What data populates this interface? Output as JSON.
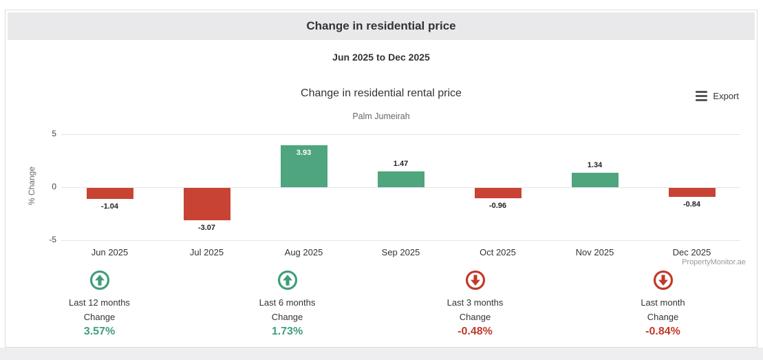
{
  "page": {
    "header_title": "Change in residential price",
    "date_range": "Jun 2025 to Dec 2025",
    "header_bg": "#e9e9eb"
  },
  "toolbar": {
    "export_label": "Export"
  },
  "chart_data": {
    "type": "bar",
    "title": "Change in residential rental price",
    "subtitle": "Palm Jumeirah",
    "categories": [
      "Jun 2025",
      "Jul 2025",
      "Aug 2025",
      "Sep 2025",
      "Oct 2025",
      "Nov 2025",
      "Dec 2025"
    ],
    "values": [
      -1.04,
      -3.07,
      3.93,
      1.47,
      -0.96,
      1.34,
      -0.84
    ],
    "ylabel": "% Change",
    "yticks": [
      5,
      0,
      -5
    ],
    "ylim": [
      -5,
      5
    ],
    "grid": true,
    "legend": false,
    "colors": {
      "positive": "#4ea57e",
      "negative": "#c94335"
    }
  },
  "watermark": "PropertyMonitor.ae",
  "stats": {
    "colors": {
      "up": "#3f9e7a",
      "down": "#c0392b"
    },
    "items": [
      {
        "period": "Last 12 months",
        "label": "Change",
        "value": "3.57%",
        "direction": "up"
      },
      {
        "period": "Last 6 months",
        "label": "Change",
        "value": "1.73%",
        "direction": "up"
      },
      {
        "period": "Last 3 months",
        "label": "Change",
        "value": "-0.48%",
        "direction": "down"
      },
      {
        "period": "Last month",
        "label": "Change",
        "value": "-0.84%",
        "direction": "down"
      }
    ]
  }
}
